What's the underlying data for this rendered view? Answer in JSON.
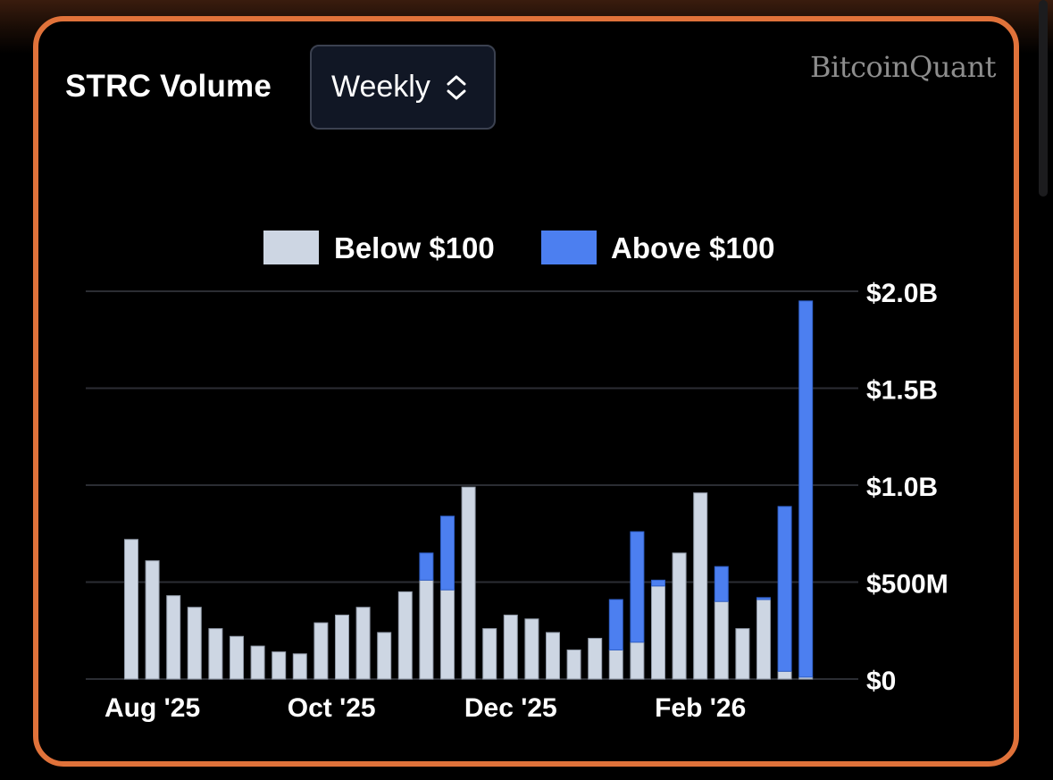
{
  "header": {
    "title": "STRC Volume",
    "interval_select": "Weekly",
    "brand": "BitcoinQuant"
  },
  "colors": {
    "below": "#cdd6e3",
    "above": "#4c7ff0",
    "border": "#e0723a",
    "grid": "#2b2d33"
  },
  "chart_data": {
    "type": "bar",
    "stacked": true,
    "title": "STRC Volume",
    "interval": "Weekly",
    "legend": [
      "Below $100",
      "Above $100"
    ],
    "legend_position": "top",
    "y_axis_side": "right",
    "ylim": [
      0,
      2000000000
    ],
    "yticks": [
      {
        "value": 0,
        "label": "$0"
      },
      {
        "value": 500000000,
        "label": "$500M"
      },
      {
        "value": 1000000000,
        "label": "$1.0B"
      },
      {
        "value": 1500000000,
        "label": "$1.5B"
      },
      {
        "value": 2000000000,
        "label": "$2.0B"
      }
    ],
    "xticks": [
      {
        "index": 1,
        "label": "Aug '25"
      },
      {
        "index": 9.5,
        "label": "Oct '25"
      },
      {
        "index": 18,
        "label": "Dec '25"
      },
      {
        "index": 27,
        "label": "Feb '26"
      }
    ],
    "series": [
      {
        "name": "Below $100",
        "values": [
          720000000,
          610000000,
          430000000,
          370000000,
          260000000,
          220000000,
          170000000,
          140000000,
          130000000,
          290000000,
          330000000,
          370000000,
          240000000,
          450000000,
          510000000,
          460000000,
          990000000,
          260000000,
          330000000,
          310000000,
          240000000,
          150000000,
          210000000,
          150000000,
          190000000,
          480000000,
          650000000,
          960000000,
          400000000,
          260000000,
          410000000,
          40000000,
          10000000
        ]
      },
      {
        "name": "Above $100",
        "values": [
          0,
          0,
          0,
          0,
          0,
          0,
          0,
          0,
          0,
          0,
          0,
          0,
          0,
          0,
          140000000,
          380000000,
          0,
          0,
          0,
          0,
          0,
          0,
          0,
          260000000,
          570000000,
          30000000,
          0,
          0,
          180000000,
          0,
          10000000,
          850000000,
          1940000000
        ]
      }
    ]
  }
}
